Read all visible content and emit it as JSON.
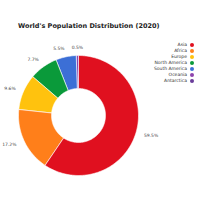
{
  "chart_data": {
    "type": "donut",
    "title": "World's Population Distribution (2020)",
    "categories": [
      "Asia",
      "Africa",
      "Europe",
      "North America",
      "South America",
      "Oceania",
      "Antarctica"
    ],
    "values": [
      59.5,
      17.2,
      9.6,
      7.7,
      5.5,
      0.5,
      0
    ],
    "value_labels": [
      "59.5%",
      "17.2%",
      "9.6%",
      "7.7%",
      "5.5%",
      "0.5%",
      null
    ],
    "colors": [
      "#e0101f",
      "#ff7f1a",
      "#ffc20e",
      "#0a9a3a",
      "#3c6fd6",
      "#8e44ad",
      "#6a3d9a"
    ],
    "data_labels": true,
    "legend": "upper right"
  }
}
